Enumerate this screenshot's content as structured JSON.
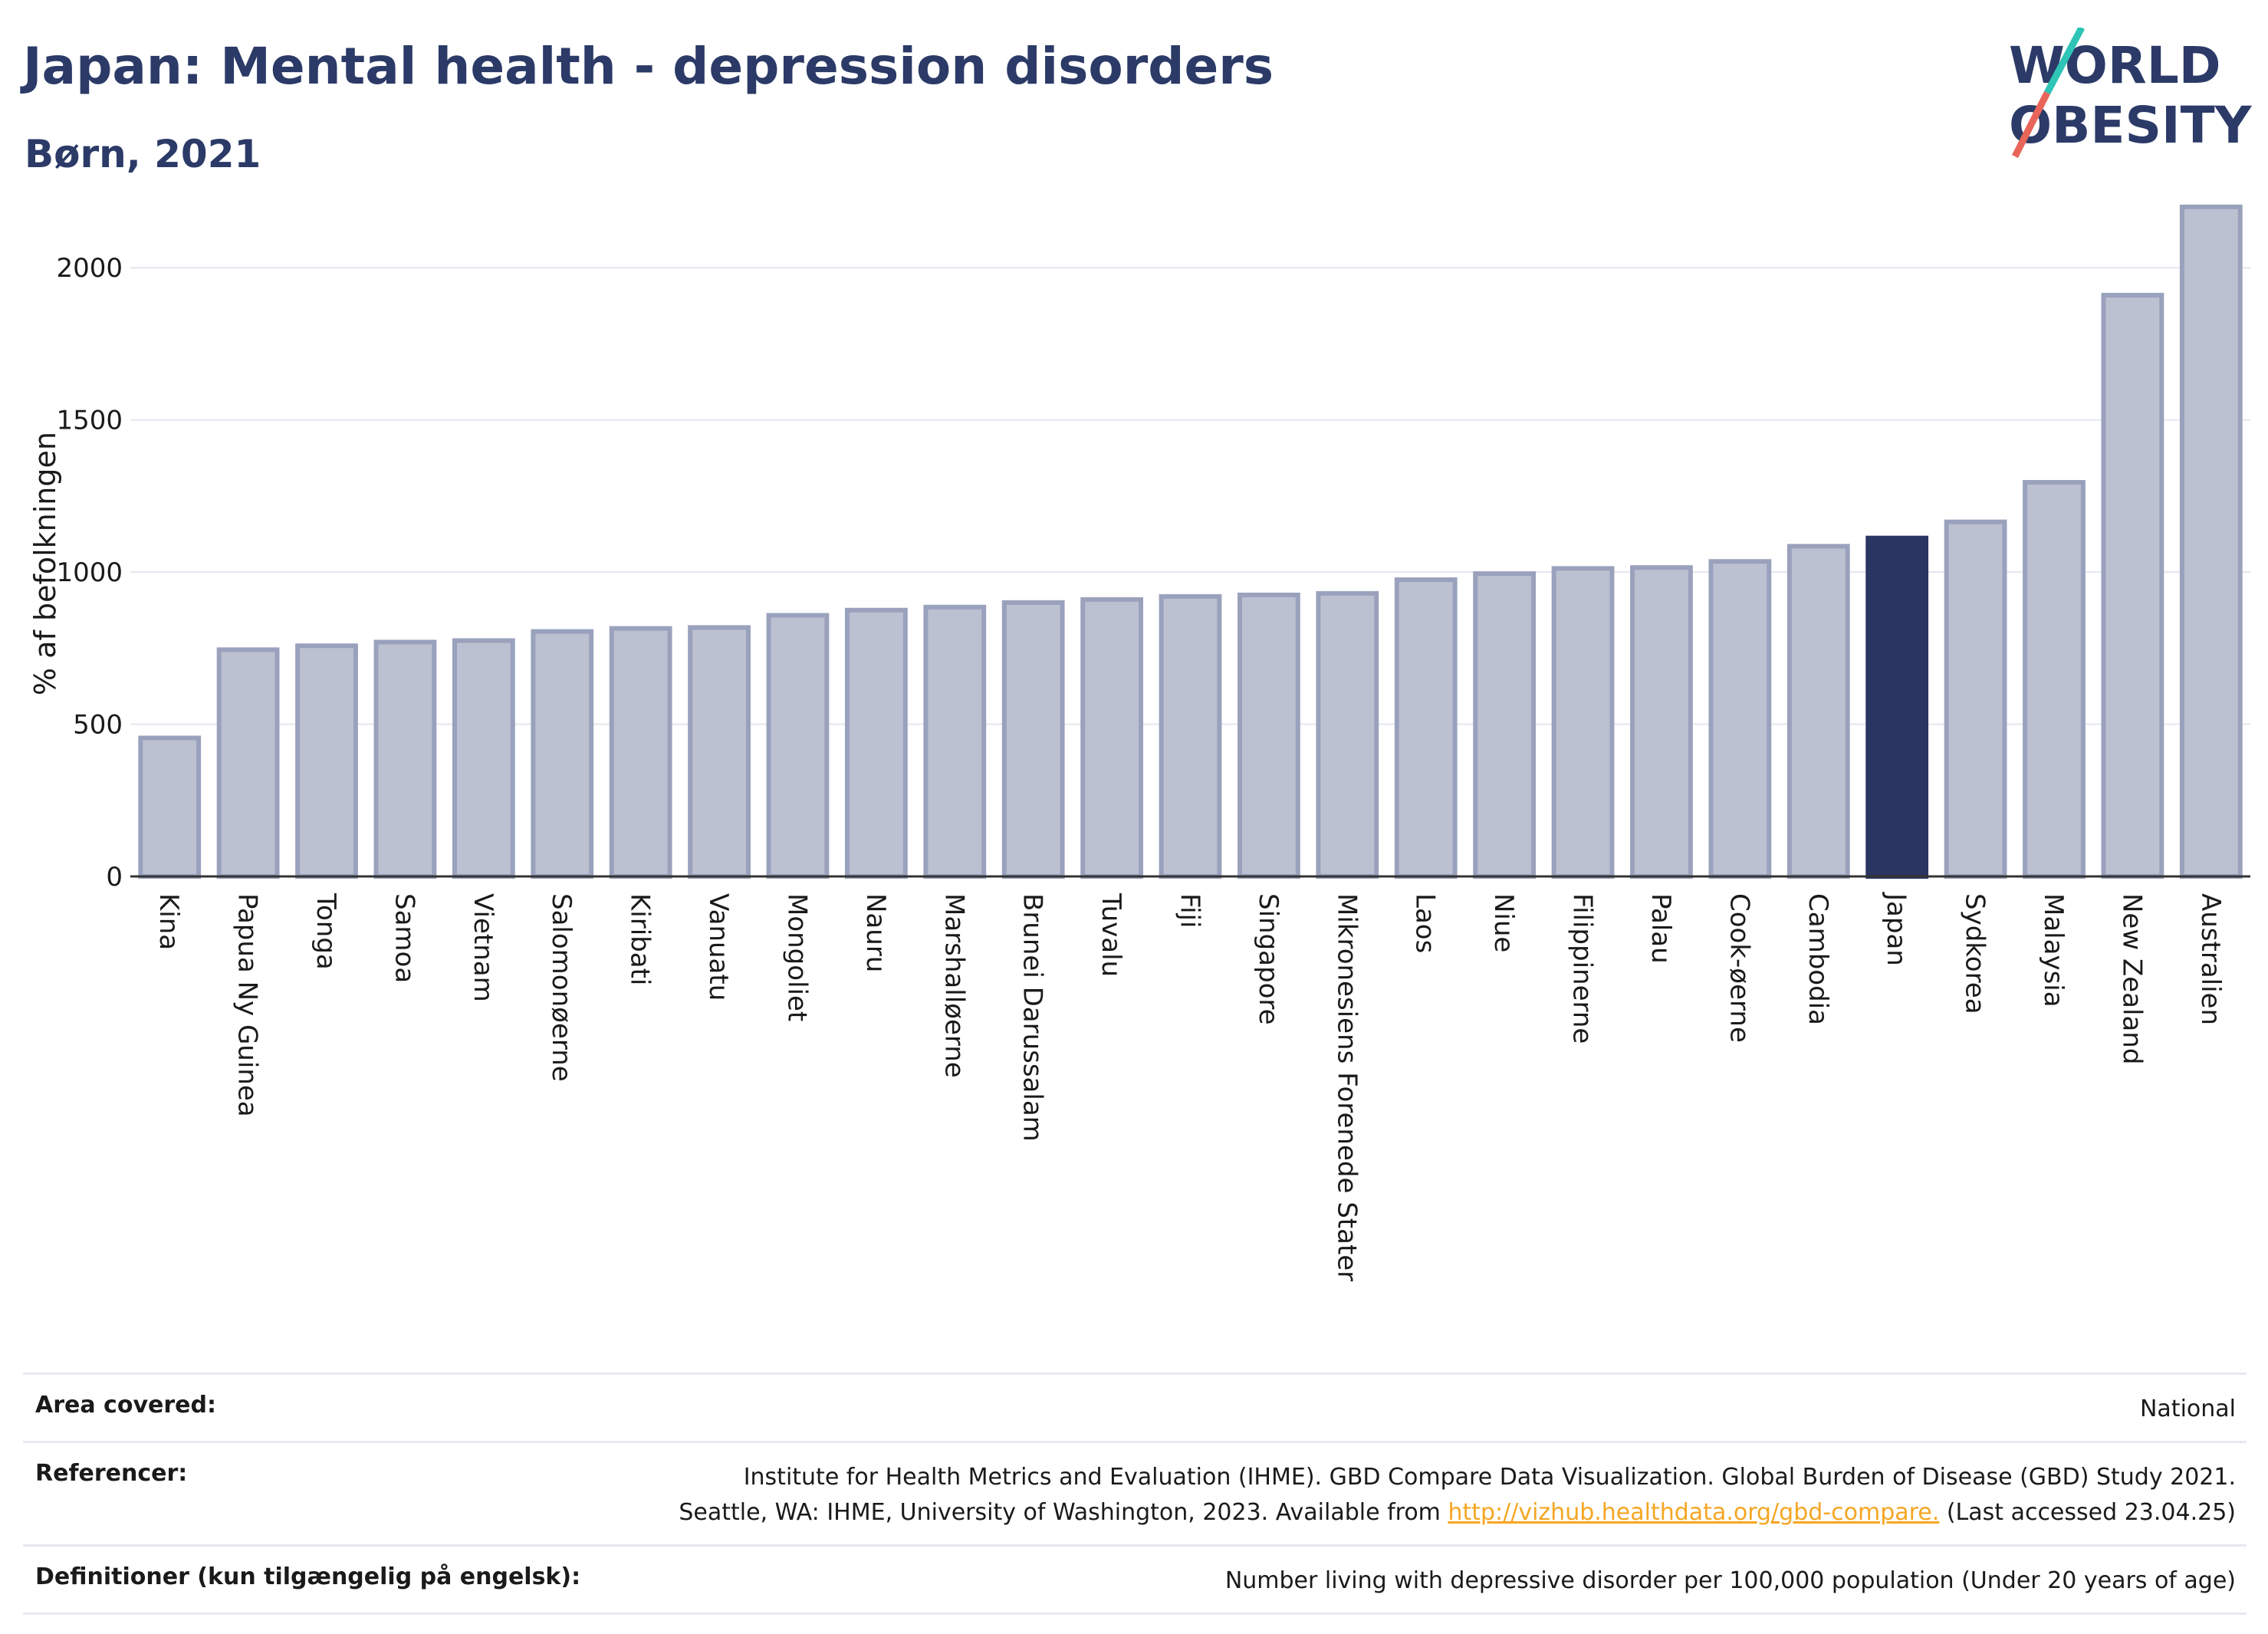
{
  "header": {
    "title": "Japan: Mental health - depression disorders",
    "subtitle": "Børn, 2021"
  },
  "logo": {
    "line1": "WORLD",
    "line2": "OBESITY",
    "colors": {
      "text": "#2b3a67",
      "slash_top": "#2ec4b6",
      "slash_bottom": "#e8655a"
    }
  },
  "chart_data": {
    "type": "bar",
    "ylabel": "% af befolkningen",
    "xlabel": "",
    "ylim": [
      0,
      2250
    ],
    "yticks": [
      0,
      500,
      1000,
      1500,
      2000
    ],
    "grid": true,
    "categories": [
      "Kina",
      "Papua Ny Guinea",
      "Tonga",
      "Samoa",
      "Vietnam",
      "Salomonøerne",
      "Kiribati",
      "Vanuatu",
      "Mongoliet",
      "Nauru",
      "Marshalløerne",
      "Brunei Darussalam",
      "Tuvalu",
      "Fiji",
      "Singapore",
      "Mikronesiens Forenede Stater",
      "Laos",
      "Niue",
      "Filippinerne",
      "Palau",
      "Cook-øerne",
      "Cambodia",
      "Japan",
      "Sydkorea",
      "Malaysia",
      "New Zealand",
      "Australien"
    ],
    "values": [
      455,
      745,
      758,
      770,
      775,
      805,
      815,
      818,
      858,
      875,
      885,
      900,
      910,
      920,
      925,
      930,
      975,
      995,
      1012,
      1015,
      1035,
      1085,
      1112,
      1165,
      1295,
      1910,
      2200
    ],
    "highlight": "Japan",
    "colors": {
      "bar": "#bcc1d1",
      "bar_border": "#9aa1bc",
      "highlight": "#2b3561",
      "grid": "#e3e6ee",
      "axis": "#333333"
    }
  },
  "footer": {
    "area_label": "Area covered:",
    "area_value": "National",
    "ref_label": "Referencer:",
    "ref_line1": "Institute for Health Metrics and Evaluation (IHME). GBD Compare Data Visualization. Global Burden of Disease (GBD) Study 2021.",
    "ref_line2_pre": "Seattle, WA: IHME, University of Washington, 2023. Available from ",
    "ref_link": "http://vizhub.healthdata.org/gbd-compare.",
    "ref_line2_post": " (Last accessed 23.04.25)",
    "def_label": "Definitioner (kun tilgængelig på engelsk):",
    "def_value": "Number living with depressive disorder per 100,000 population (Under 20 years of age)"
  }
}
